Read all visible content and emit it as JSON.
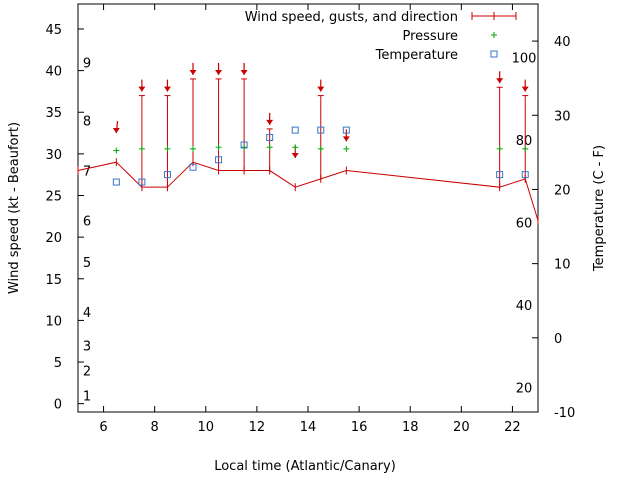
{
  "chart_data": {
    "type": "line",
    "xlabel": "Local time (Atlantic/Canary)",
    "ylabel": "Wind speed (kt - Beaufort)",
    "y2label": "Temperature (C - F)",
    "xlim": [
      5,
      23
    ],
    "ylim": [
      -1,
      48
    ],
    "y2lim": [
      -10,
      45
    ],
    "x_ticks": [
      "6",
      "8",
      "10",
      "12",
      "14",
      "16",
      "18",
      "20",
      "22"
    ],
    "y_ticks": [
      "0",
      "5",
      "10",
      "15",
      "20",
      "25",
      "30",
      "35",
      "40",
      "45"
    ],
    "y2_ticks": [
      "-10",
      "0",
      "10",
      "20",
      "30",
      "40"
    ],
    "beaufort_labels": [
      "1",
      "2",
      "3",
      "4",
      "5",
      "6",
      "7",
      "8",
      "9"
    ],
    "fahrenheit_labels": [
      "20",
      "40",
      "60",
      "80",
      "100"
    ],
    "grid": false,
    "legend_position": "top-right",
    "colors": {
      "wind": "#cc0000",
      "pressure": "#00aa00",
      "temperature": "#3377cc"
    },
    "series": [
      {
        "name": "Wind speed, gusts, and direction",
        "x": [
          5,
          6.5,
          7.5,
          8.5,
          9.5,
          10.5,
          11.5,
          12.5,
          13.5,
          14.5,
          15.5,
          21.5,
          22.5,
          23
        ],
        "values": [
          28,
          29,
          26,
          26,
          29,
          28,
          28,
          28,
          26,
          27,
          28,
          26,
          27,
          22
        ],
        "gusts": [
          null,
          null,
          37,
          37,
          39,
          39,
          39,
          33,
          null,
          37,
          null,
          38,
          37,
          null
        ],
        "direction_deg": [
          null,
          340,
          0,
          0,
          0,
          0,
          0,
          0,
          0,
          0,
          0,
          0,
          0,
          null
        ]
      },
      {
        "name": "Pressure",
        "x": [
          6.5,
          7.5,
          8.5,
          9.5,
          10.5,
          11.5,
          12.5,
          13.5,
          14.5,
          15.5,
          21.5,
          22.5
        ],
        "values": [
          30.4,
          30.6,
          30.6,
          30.6,
          30.8,
          30.8,
          30.8,
          30.8,
          30.6,
          30.6,
          30.6,
          30.6
        ]
      },
      {
        "name": "Temperature",
        "axis": "right",
        "x": [
          6.5,
          7.5,
          8.5,
          9.5,
          10.5,
          11.5,
          12.5,
          13.5,
          14.5,
          15.5,
          21.5,
          22.5
        ],
        "values": [
          21,
          21,
          22,
          23,
          24,
          26,
          27,
          28,
          28,
          28,
          22,
          22
        ]
      }
    ]
  }
}
